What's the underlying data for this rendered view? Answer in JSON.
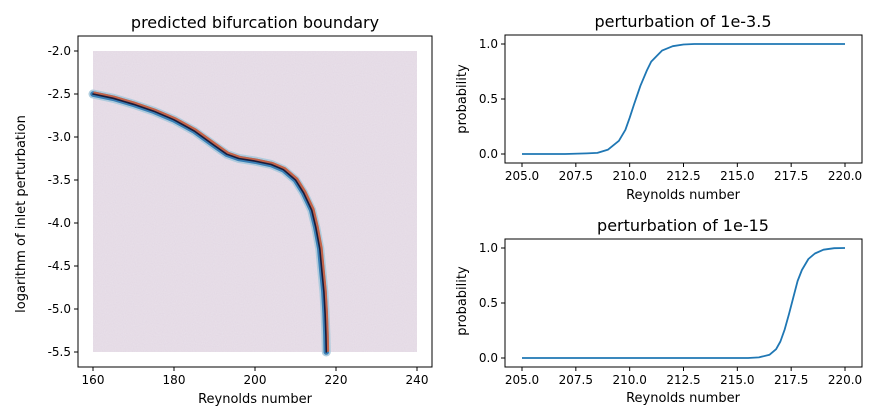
{
  "chart_data": [
    {
      "type": "heatmap",
      "title": "predicted bifurcation boundary",
      "xlabel": "Reynolds number",
      "ylabel": "logarithm of inlet perturbation",
      "xlim": [
        160,
        240
      ],
      "ylim": [
        -5.5,
        -2.0
      ],
      "xticks": [
        "160",
        "180",
        "200",
        "220",
        "240"
      ],
      "yticks": [
        "-2.0",
        "-2.5",
        "-3.0",
        "-3.5",
        "-4.0",
        "-4.5",
        "-5.0",
        "-5.5"
      ],
      "background_color": "#e2d7e3",
      "boundary": {
        "x": [
          160,
          165,
          170,
          175,
          180,
          185,
          190,
          193,
          196,
          200,
          204,
          207,
          210,
          212,
          214,
          215,
          216,
          216.5,
          217,
          217.3,
          217.5,
          217.6
        ],
        "y": [
          -2.5,
          -2.55,
          -2.62,
          -2.7,
          -2.8,
          -2.93,
          -3.1,
          -3.2,
          -3.25,
          -3.28,
          -3.32,
          -3.38,
          -3.5,
          -3.65,
          -3.85,
          -4.05,
          -4.3,
          -4.55,
          -4.8,
          -5.05,
          -5.3,
          -5.5
        ]
      },
      "grid": false
    },
    {
      "type": "line",
      "title": "perturbation of 1e-3.5",
      "xlabel": "Reynolds number",
      "ylabel": "probability",
      "xlim": [
        205,
        220
      ],
      "ylim": [
        0,
        1
      ],
      "xticks": [
        "205.0",
        "207.5",
        "210.0",
        "212.5",
        "215.0",
        "217.5",
        "220.0"
      ],
      "yticks": [
        "0.0",
        "0.5",
        "1.0"
      ],
      "series": [
        {
          "color": "#1f77b4",
          "x": [
            205,
            206,
            207,
            208,
            208.5,
            209,
            209.5,
            209.8,
            210,
            210.2,
            210.5,
            210.8,
            211,
            211.5,
            212,
            212.5,
            213,
            214,
            215,
            216,
            218,
            220
          ],
          "y": [
            0,
            0,
            0,
            0.005,
            0.01,
            0.04,
            0.12,
            0.22,
            0.33,
            0.45,
            0.62,
            0.76,
            0.84,
            0.94,
            0.98,
            0.995,
            1,
            1,
            1,
            1,
            1,
            1
          ]
        }
      ],
      "grid": false
    },
    {
      "type": "line",
      "title": "perturbation of 1e-15",
      "xlabel": "Reynolds number",
      "ylabel": "probability",
      "xlim": [
        205,
        220
      ],
      "ylim": [
        0,
        1
      ],
      "xticks": [
        "205.0",
        "207.5",
        "210.0",
        "212.5",
        "215.0",
        "217.5",
        "220.0"
      ],
      "yticks": [
        "0.0",
        "0.5",
        "1.0"
      ],
      "series": [
        {
          "color": "#1f77b4",
          "x": [
            205,
            208,
            211,
            214,
            215.5,
            216,
            216.5,
            216.8,
            217,
            217.2,
            217.4,
            217.6,
            217.8,
            218,
            218.3,
            218.6,
            219,
            219.5,
            220
          ],
          "y": [
            0,
            0,
            0,
            0,
            0,
            0.005,
            0.03,
            0.08,
            0.15,
            0.26,
            0.4,
            0.55,
            0.7,
            0.8,
            0.9,
            0.95,
            0.985,
            0.998,
            1
          ]
        }
      ],
      "grid": false
    }
  ]
}
